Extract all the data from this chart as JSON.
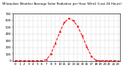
{
  "title": "Milwaukee Weather Average Solar Radiation per Hour W/m2 (Last 24 Hours)",
  "hours": [
    0,
    1,
    2,
    3,
    4,
    5,
    6,
    7,
    8,
    9,
    10,
    11,
    12,
    13,
    14,
    15,
    16,
    17,
    18,
    19,
    20,
    21,
    22,
    23
  ],
  "values": [
    0,
    0,
    0,
    0,
    0,
    0,
    0,
    15,
    100,
    260,
    430,
    570,
    630,
    600,
    510,
    370,
    210,
    70,
    8,
    0,
    0,
    0,
    0,
    0
  ],
  "line_color": "red",
  "line_style": "--",
  "line_width": 0.7,
  "marker": ".",
  "marker_size": 1.2,
  "grid_color": "#999999",
  "grid_style": ":",
  "grid_lw": 0.3,
  "bg_color": "#ffffff",
  "ylim": [
    0,
    700
  ],
  "xlim": [
    -0.5,
    23.5
  ],
  "yticks": [
    0,
    100,
    200,
    300,
    400,
    500,
    600,
    700
  ],
  "xtick_labels": [
    "0",
    "1",
    "2",
    "3",
    "4",
    "5",
    "6",
    "7",
    "8",
    "9",
    "10",
    "11",
    "12",
    "13",
    "14",
    "15",
    "16",
    "17",
    "18",
    "19",
    "20",
    "21",
    "22",
    "23"
  ],
  "tick_fontsize": 2.8,
  "title_fontsize": 2.8,
  "spine_lw": 0.4
}
